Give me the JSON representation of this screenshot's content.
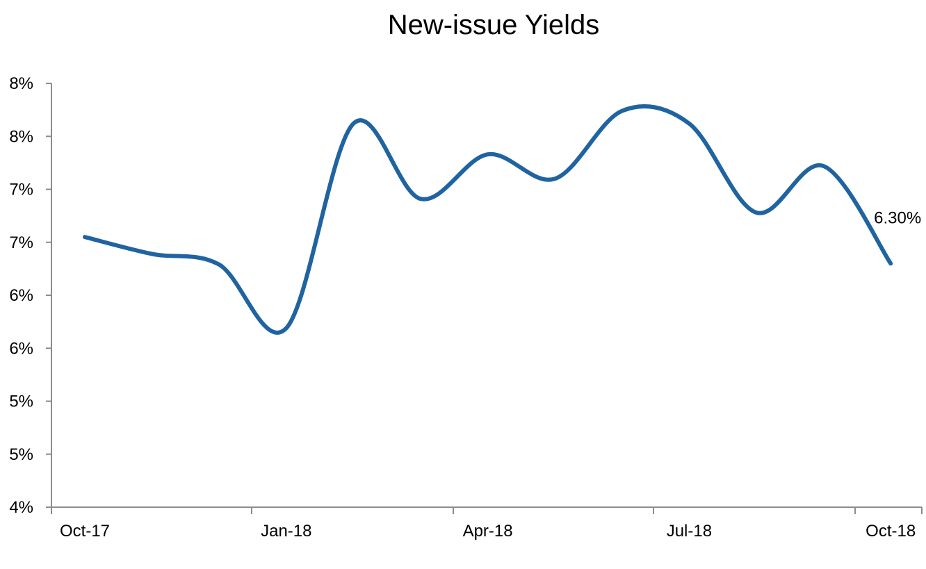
{
  "chart_data": {
    "type": "line",
    "title": "New-issue Yields",
    "xlabel": "",
    "ylabel": "",
    "x_tick_labels": [
      "Oct-17",
      "Jan-18",
      "Apr-18",
      "Jul-18",
      "Oct-18"
    ],
    "y_tick_labels": [
      "4%",
      "5%",
      "5%",
      "6%",
      "6%",
      "7%",
      "7%",
      "8%",
      "8%"
    ],
    "ylim": [
      4.0,
      8.0
    ],
    "y_tick_values": [
      4.0,
      4.5,
      5.0,
      5.5,
      6.0,
      6.5,
      7.0,
      7.5,
      8.0
    ],
    "x": [
      "2017-10",
      "2017-11",
      "2017-12",
      "2018-01",
      "2018-02",
      "2018-03",
      "2018-04",
      "2018-05",
      "2018-06",
      "2018-07",
      "2018-08",
      "2018-09",
      "2018-10"
    ],
    "series": [
      {
        "name": "",
        "color": "#1f64a0",
        "values": [
          6.55,
          6.39,
          6.29,
          5.69,
          7.62,
          6.91,
          7.33,
          7.1,
          7.74,
          7.62,
          6.78,
          7.22,
          6.3
        ]
      }
    ],
    "annotations": [
      {
        "text": "6.30%",
        "x": "2018-10",
        "y": 6.3
      }
    ],
    "grid": false,
    "legend": "none"
  }
}
